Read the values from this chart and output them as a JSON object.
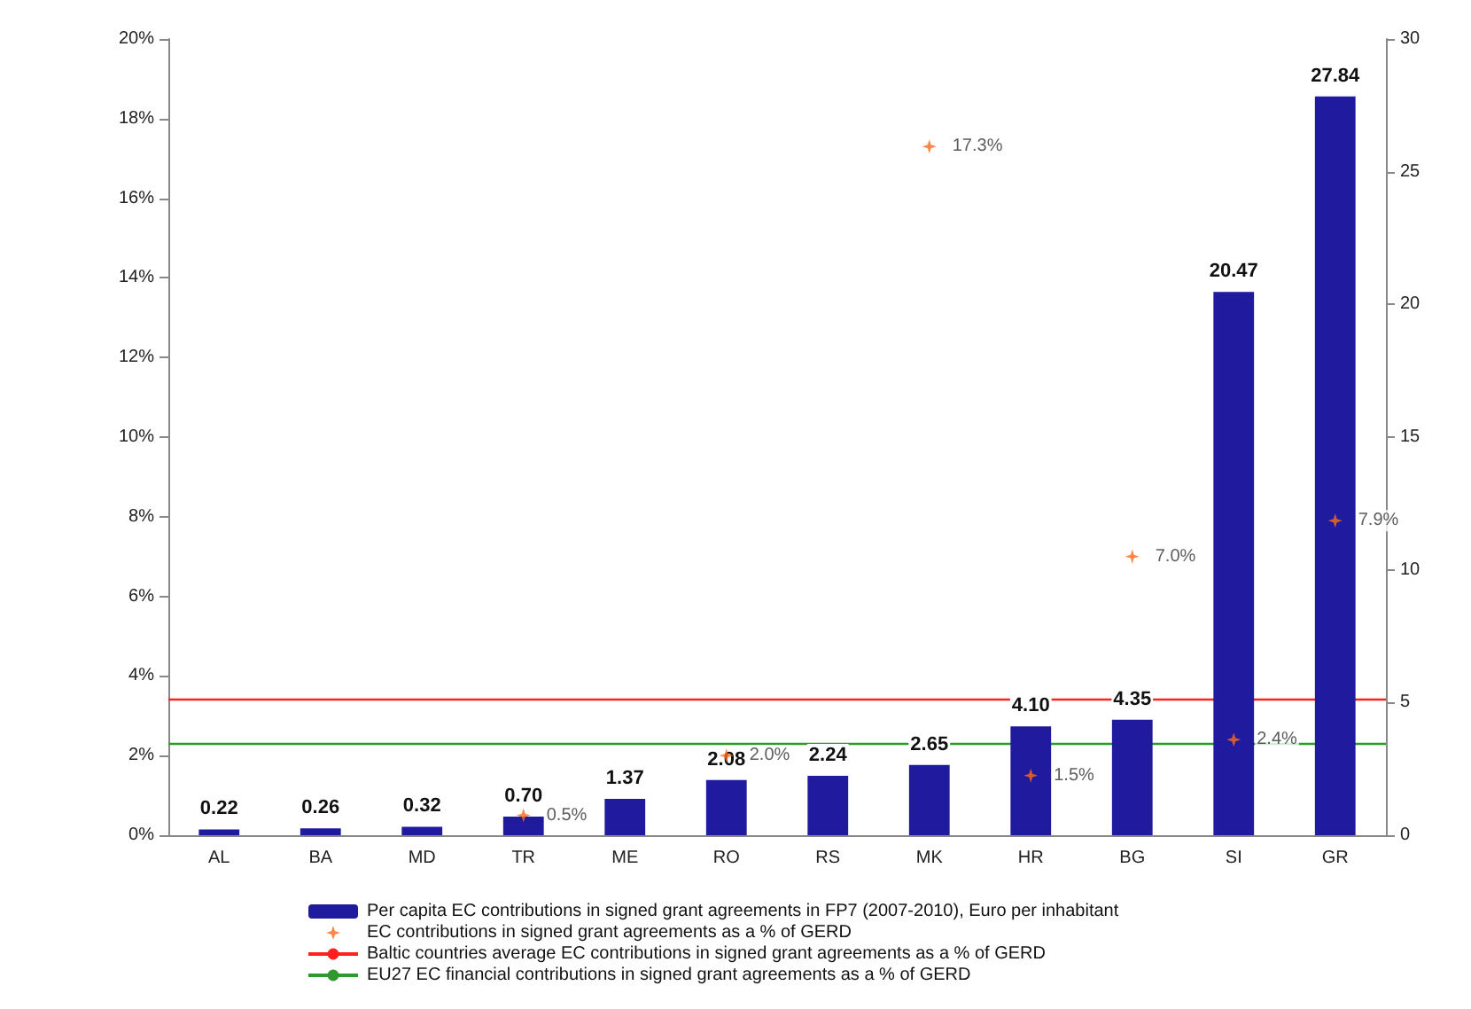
{
  "chart_data": {
    "type": "bar",
    "categories": [
      "AL",
      "BA",
      "MD",
      "TR",
      "ME",
      "RO",
      "RS",
      "MK",
      "HR",
      "BG",
      "SI",
      "GR"
    ],
    "series": [
      {
        "name": "Per capita EC contributions in signed grant agreements in FP7 (2007-2010), Euro per inhabitant",
        "axis": "y2",
        "color": "#1f1a9e",
        "values": [
          0.22,
          0.26,
          0.32,
          0.7,
          1.37,
          2.08,
          2.24,
          2.65,
          4.1,
          4.35,
          20.47,
          27.84
        ],
        "value_labels": [
          "0.22",
          "0.26",
          "0.32",
          "0.70",
          "1.37",
          "2.08",
          "2.24",
          "2.65",
          "4.10",
          "4.35",
          "20.47",
          "27.84"
        ]
      },
      {
        "name": "EC contributions in signed grant agreements as a % of GERD",
        "type": "scatter",
        "axis": "y",
        "color": "#ff6a1a",
        "values": [
          null,
          null,
          null,
          0.5,
          null,
          2.0,
          null,
          17.3,
          1.5,
          7.0,
          2.4,
          7.9
        ],
        "value_labels": [
          null,
          null,
          null,
          "0.5%",
          null,
          "2.0%",
          null,
          "17.3%",
          "1.5%",
          "7.0%",
          "2.4%",
          "7.9%"
        ]
      }
    ],
    "ylim": [
      0,
      20
    ],
    "yticks": [
      {
        "value": 0,
        "label": "0%"
      },
      {
        "value": 2,
        "label": "2%"
      },
      {
        "value": 4,
        "label": "4%"
      },
      {
        "value": 6,
        "label": "6%"
      },
      {
        "value": 8,
        "label": "8%"
      },
      {
        "value": 10,
        "label": "10%"
      },
      {
        "value": 12,
        "label": "12%"
      },
      {
        "value": 14,
        "label": "14%"
      },
      {
        "value": 16,
        "label": "16%"
      },
      {
        "value": 18,
        "label": "18%"
      },
      {
        "value": 20,
        "label": "20%"
      }
    ],
    "y2lim": [
      0,
      30
    ],
    "y2ticks": [
      0,
      5,
      10,
      15,
      20,
      25,
      30
    ],
    "ref_lines": [
      {
        "axis": "y",
        "value": 3.4,
        "label": "Baltic countries average EC contributions in signed grant agreements as a % of GERD",
        "color": "#ff2020"
      },
      {
        "axis": "y",
        "value": 2.3,
        "label": "EU27 EC financial contributions in signed grant agreements as a % of GERD",
        "color": "#2e9a2e"
      }
    ],
    "marker": "star",
    "grid": false,
    "legend": "bottom"
  }
}
